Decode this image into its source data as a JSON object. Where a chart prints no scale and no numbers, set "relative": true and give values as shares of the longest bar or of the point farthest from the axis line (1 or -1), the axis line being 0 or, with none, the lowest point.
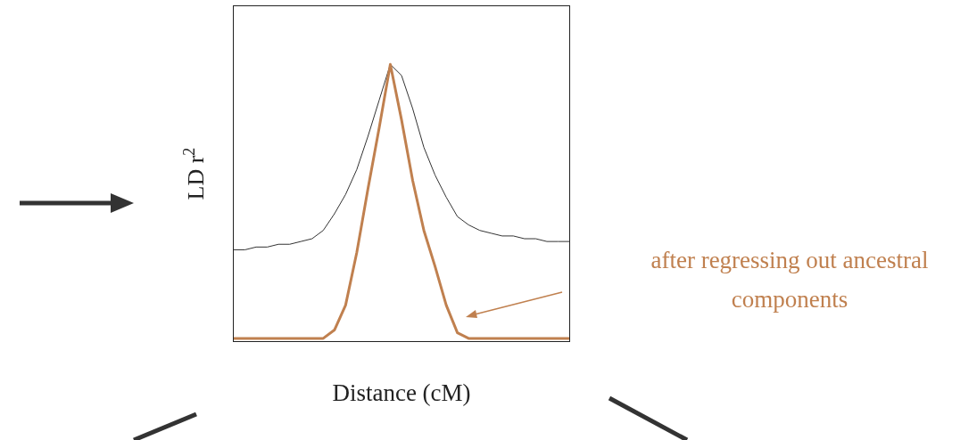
{
  "chart_data": {
    "type": "line",
    "relative": true,
    "xlabel": "Distance (cM)",
    "ylabel": "LD $^{}$r$^{2}$",
    "categories": [
      null,
      null,
      null,
      null,
      null,
      null,
      null,
      null,
      null,
      null,
      null,
      null,
      null,
      null,
      null,
      null,
      null,
      null,
      null,
      null,
      null,
      null,
      null,
      null,
      null,
      null,
      null,
      null,
      null,
      null,
      null
    ],
    "series": [
      {
        "color": "#333333",
        "values": [
          0.33,
          0.33,
          0.34,
          0.34,
          0.35,
          0.35,
          0.36,
          0.37,
          0.4,
          0.46,
          0.53,
          0.62,
          0.74,
          0.87,
          1,
          0.96,
          0.84,
          0.7,
          0.6,
          0.52,
          0.45,
          0.42,
          0.4,
          0.39,
          0.38,
          0.38,
          0.37,
          0.37,
          0.36,
          0.36,
          0.36
        ]
      },
      {
        "color": "#c0804f",
        "values": [
          0.01,
          0.01,
          0.01,
          0.01,
          0.01,
          0.01,
          0.01,
          0.01,
          0.01,
          0.04,
          0.13,
          0.32,
          0.55,
          0.77,
          1,
          0.8,
          0.58,
          0.4,
          0.27,
          0.13,
          0.03,
          0.01,
          0.01,
          0.01,
          0.01,
          0.01,
          0.01,
          0.01,
          0.01,
          0.01,
          0.01
        ]
      }
    ],
    "annotations": [
      "after regressing out ancestral components"
    ]
  }
}
